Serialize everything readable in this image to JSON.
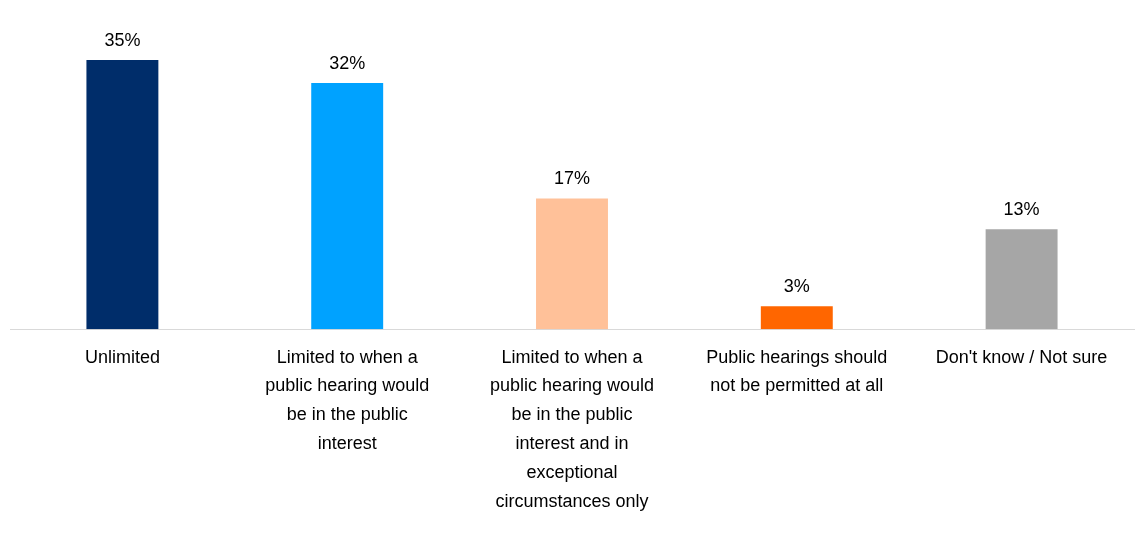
{
  "chart_data": {
    "type": "bar",
    "categories": [
      "Unlimited",
      "Limited to when a public hearing would be in the public interest",
      "Limited to when a public hearing would be in the public interest and in exceptional circumstances only",
      "Public hearings should not be permitted at all",
      "Don't know / Not sure"
    ],
    "values": [
      35,
      32,
      17,
      3,
      13
    ],
    "colors": [
      "#002d6a",
      "#00a2ff",
      "#ffc199",
      "#ff6600",
      "#a6a6a6"
    ],
    "value_labels": [
      "35%",
      "32%",
      "17%",
      "3%",
      "13%"
    ],
    "tick_labels": "x",
    "grid": false,
    "legend": false
  }
}
